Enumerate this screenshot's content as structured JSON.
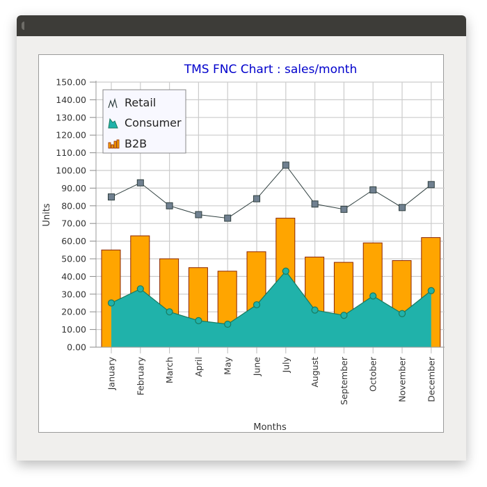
{
  "window": {
    "title": ""
  },
  "chart_data": {
    "type": "bar",
    "title": "TMS FNC Chart : sales/month",
    "xlabel": "Months",
    "ylabel": "Units",
    "ylim": [
      0,
      150
    ],
    "y_ticks": [
      "0.00",
      "10.00",
      "20.00",
      "30.00",
      "40.00",
      "50.00",
      "60.00",
      "70.00",
      "80.00",
      "90.00",
      "100.00",
      "110.00",
      "120.00",
      "130.00",
      "140.00",
      "150.00"
    ],
    "grid": true,
    "legend_position": "top-left",
    "categories": [
      "January",
      "February",
      "March",
      "April",
      "May",
      "June",
      "July",
      "August",
      "September",
      "October",
      "November",
      "December"
    ],
    "series": [
      {
        "name": "Retail",
        "type": "line",
        "color": "#708090",
        "values": [
          85,
          93,
          80,
          75,
          73,
          84,
          103,
          81,
          78,
          89,
          79,
          92
        ]
      },
      {
        "name": "Consumer",
        "type": "area",
        "color": "#20b2aa",
        "values": [
          25,
          33,
          20,
          15,
          13,
          24,
          43,
          21,
          18,
          29,
          19,
          32
        ]
      },
      {
        "name": "B2B",
        "type": "bar",
        "color": "#ffa500",
        "values": [
          55,
          63,
          50,
          45,
          43,
          54,
          73,
          51,
          48,
          59,
          49,
          62
        ]
      }
    ]
  },
  "colors": {
    "title": "#0000cc",
    "bar_border": "#8b2500",
    "line_stroke": "#2f3f3f",
    "marker_fill": "#708090",
    "area_stroke": "#1a7a5e",
    "grid": "#cccccc"
  }
}
